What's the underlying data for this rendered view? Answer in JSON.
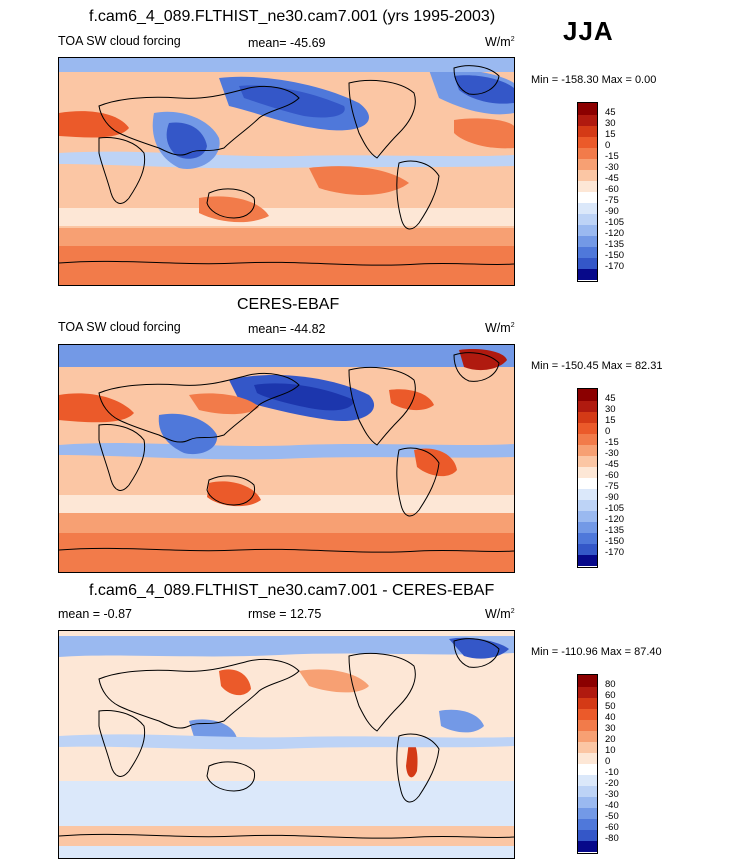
{
  "figure": {
    "season": "JJA",
    "colors": {
      "warm": [
        "#8b0000",
        "#b01a0f",
        "#d43a16",
        "#eb5a2a",
        "#f27b4a",
        "#f7a073",
        "#fbc6a4",
        "#fde7d6"
      ],
      "neutral": "#ffffff",
      "cool": [
        "#dbe8fa",
        "#bdd3f6",
        "#9ab9f0",
        "#7399e6",
        "#4f78da",
        "#3457c8",
        "#1c36ad",
        "#07098a"
      ],
      "land_outline": "#000000"
    }
  },
  "panels": [
    {
      "title": "f.cam6_4_089.FLTHIST_ne30.cam7.001 (yrs 1995-2003)",
      "left_label": "TOA SW cloud forcing",
      "center_label": "mean= -45.69",
      "units": "W/m",
      "units_sup": "2",
      "minmax": "Min = -158.30 Max =   0.00",
      "colorbar_ticks": [
        "45",
        "30",
        "15",
        "0",
        "-15",
        "-30",
        "-45",
        "-60",
        "-75",
        "-90",
        "-105",
        "-120",
        "-135",
        "-150",
        "-170"
      ]
    },
    {
      "title": "CERES-EBAF",
      "left_label": "TOA SW cloud forcing",
      "center_label": "mean= -44.82",
      "units": "W/m",
      "units_sup": "2",
      "minmax": "Min = -150.45 Max =  82.31",
      "colorbar_ticks": [
        "45",
        "30",
        "15",
        "0",
        "-15",
        "-30",
        "-45",
        "-60",
        "-75",
        "-90",
        "-105",
        "-120",
        "-135",
        "-150",
        "-170"
      ]
    },
    {
      "title": "f.cam6_4_089.FLTHIST_ne30.cam7.001 - CERES-EBAF",
      "left_label": "mean =  -0.87",
      "center_label": "rmse =  12.75",
      "units": "W/m",
      "units_sup": "2",
      "minmax": "Min = -110.96 Max =  87.40",
      "colorbar_ticks": [
        "80",
        "60",
        "50",
        "40",
        "30",
        "20",
        "10",
        "0",
        "-10",
        "-20",
        "-30",
        "-40",
        "-50",
        "-60",
        "-80"
      ]
    }
  ]
}
